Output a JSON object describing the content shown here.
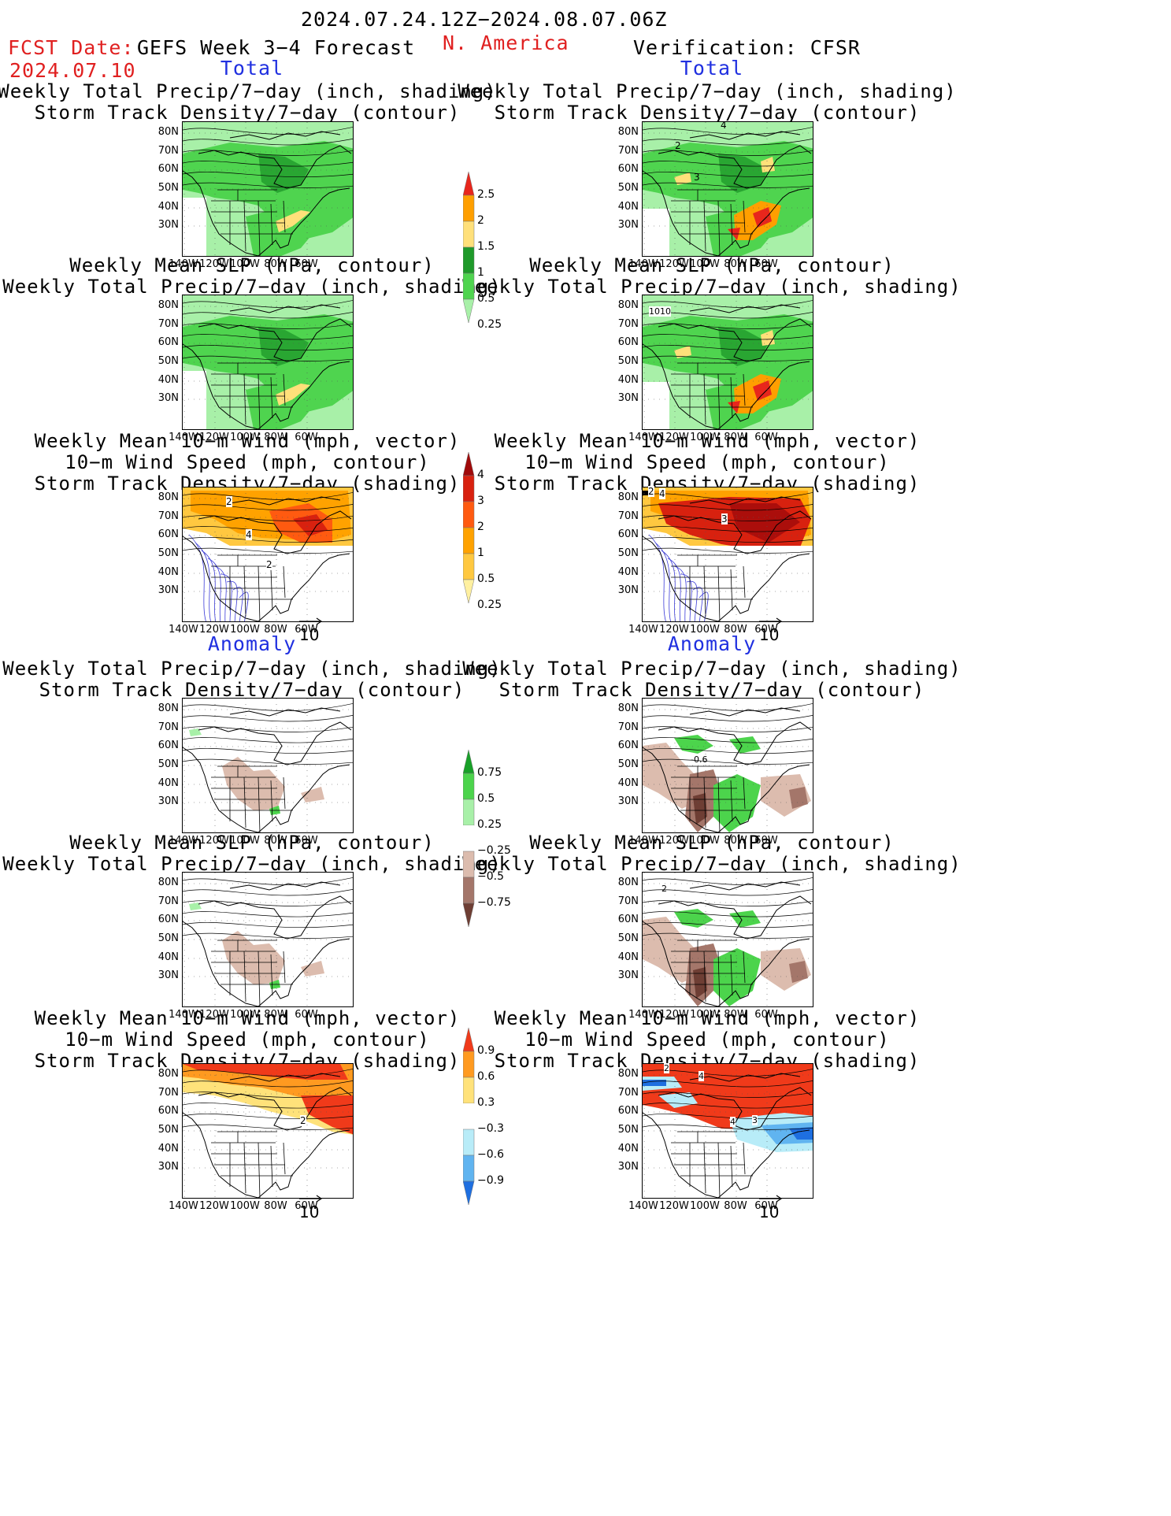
{
  "header": {
    "date_range": "2024.07.24.12Z−2024.08.07.06Z",
    "fcst_label": "FCST Date:",
    "fcst_date": "2024.07.10",
    "model_title": "GEFS Week 3−4 Forecast",
    "region": "N. America",
    "verification": "Verification: CFSR"
  },
  "sections": {
    "total": "Total",
    "anomaly": "Anomaly"
  },
  "titles": {
    "precip_storm": [
      "Weekly Total Precip/7−day (inch, shading)",
      "Storm Track Density/7−day (contour)"
    ],
    "slp_precip": [
      "Weekly Mean SLP (hPa, contour)",
      "Weekly Total Precip/7−day (inch, shading)"
    ],
    "wind": [
      "Weekly Mean 10−m Wind (mph, vector)",
      "10−m Wind Speed (mph, contour)",
      "Storm Track Density/7−day (shading)"
    ]
  },
  "axes": {
    "lat_ticks": [
      "80N",
      "70N",
      "60N",
      "50N",
      "40N",
      "30N"
    ],
    "lon_ticks": [
      "140W",
      "120W",
      "100W",
      "80W",
      "60W"
    ]
  },
  "vector_ref": "10",
  "map_labels": {
    "obs_precip_contours": [
      "4",
      "2",
      "3"
    ],
    "obs_slp_contour": "1010",
    "fcst_wind_density": [
      "2",
      "4",
      "2"
    ],
    "obs_wind_density": [
      "2",
      "4",
      "3"
    ],
    "obs_anom_precip": "-0.6",
    "obs_anom_slp": "2",
    "fcst_anom_wind": "2",
    "obs_anom_wind": [
      "2",
      "4",
      "4",
      "3"
    ]
  },
  "colorbars": {
    "precip_total": {
      "labels": [
        "2.5",
        "2",
        "1.5",
        "1",
        "0.5",
        "0.25"
      ],
      "colors": [
        "#e8261c",
        "#ff9f00",
        "#ffe07a",
        "#1f9a2a",
        "#4fd44f",
        "#a8f0a8"
      ]
    },
    "storm_total": {
      "labels": [
        "4",
        "3",
        "2",
        "1",
        "0.5",
        "0.25"
      ],
      "colors": [
        "#a00a0a",
        "#d8210f",
        "#ff5a10",
        "#ffa200",
        "#ffc840",
        "#fff0a0"
      ]
    },
    "precip_anom": {
      "labels": [
        "0.75",
        "0.5",
        "0.25",
        "−0.25",
        "−0.5",
        "−0.75"
      ],
      "colors": [
        "#18a028",
        "#4cd44c",
        "#a8f0a8",
        "#ffffff",
        "#dcbcae",
        "#a4766a",
        "#6e3e34"
      ]
    },
    "wind_anom": {
      "labels": [
        "0.9",
        "0.6",
        "0.3",
        "−0.3",
        "−0.6",
        "−0.9"
      ],
      "colors": [
        "#f03a1a",
        "#ff9a20",
        "#ffe27a",
        "#ffffff",
        "#b8ecf8",
        "#60b4f0",
        "#1e6fe0"
      ]
    }
  }
}
